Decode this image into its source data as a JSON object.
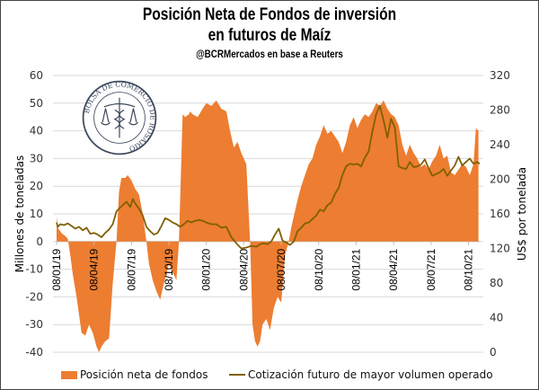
{
  "header": {
    "title_line1": "Posición Neta de Fondos de inversión",
    "title_line2": "en futuros de Maíz",
    "subtitle": "@BCRMercados  en base a Reuters"
  },
  "logo": {
    "text": "BOLSA DE COMERCIO DE ROSARIO",
    "icon": "caduceus-scales-seal-icon"
  },
  "colors": {
    "area": "#ED7D31",
    "line": "#7F6000",
    "grid": "#D9D9D9"
  },
  "chart_data": {
    "type": "area",
    "title": "Posición Neta de Fondos de inversión en futuros de Maíz",
    "subtitle": "@BCRMercados  en base a Reuters",
    "x_unit": "months since 2019-01",
    "x_tick_labels": [
      "08/01/19",
      "08/04/19",
      "08/07/19",
      "08/10/19",
      "08/01/20",
      "08/04/20",
      "08/07/20",
      "08/10/20",
      "08/01/21",
      "08/04/21",
      "08/07/21",
      "08/10/21"
    ],
    "x_tick_positions": [
      0,
      3,
      6,
      9,
      12,
      15,
      18,
      21,
      24,
      27,
      30,
      33
    ],
    "xlim": [
      0,
      33.9
    ],
    "y_left": {
      "label": "Millones de toneladas",
      "lim": [
        -40,
        60
      ],
      "ticks": [
        60,
        50,
        40,
        30,
        20,
        10,
        0,
        -10,
        -20,
        -30,
        -40
      ]
    },
    "y_right": {
      "label": "US$ por tonelada",
      "lim": [
        0,
        320
      ],
      "ticks": [
        320,
        280,
        240,
        200,
        160,
        120,
        80,
        40,
        0
      ]
    },
    "grid": true,
    "legend_position": "bottom",
    "series": [
      {
        "name": "Posición neta de fondos",
        "type": "area",
        "axis": "left",
        "x": [
          0,
          0.1,
          0.4,
          0.7,
          0.9,
          1.1,
          1.3,
          1.6,
          2.0,
          2.3,
          2.6,
          2.9,
          3.2,
          3.4,
          3.6,
          3.9,
          4.2,
          4.5,
          4.8,
          5.0,
          5.2,
          5.5,
          5.7,
          6.0,
          6.3,
          6.6,
          6.9,
          7.2,
          7.4,
          7.7,
          8.0,
          8.3,
          8.6,
          8.8,
          9.0,
          9.2,
          9.4,
          9.6,
          9.8,
          10.1,
          10.3,
          10.6,
          10.7,
          10.9,
          11.3,
          11.7,
          12.0,
          12.4,
          12.8,
          13.2,
          13.6,
          13.9,
          14.2,
          14.5,
          14.8,
          15.0,
          15.2,
          15.5,
          15.7,
          15.9,
          16.1,
          16.3,
          16.5,
          16.8,
          17.1,
          17.4,
          17.7,
          18.0,
          18.3,
          18.6,
          18.8,
          19.0,
          19.3,
          19.6,
          19.9,
          20.2,
          20.5,
          20.8,
          21.1,
          21.4,
          21.7,
          22.0,
          22.3,
          22.6,
          22.9,
          23.2,
          23.5,
          23.8,
          24.1,
          24.4,
          24.7,
          25.0,
          25.3,
          25.6,
          25.9,
          26.2,
          26.5,
          26.8,
          27.1,
          27.4,
          27.7,
          28.0,
          28.3,
          28.6,
          28.9,
          29.2,
          29.5,
          29.8,
          30.1,
          30.4,
          30.7,
          31.0,
          31.3,
          31.6,
          31.9,
          32.2,
          32.5,
          32.8,
          33.1,
          33.4,
          33.6,
          33.8
        ],
        "values": [
          9,
          5,
          3,
          2,
          1,
          -5,
          -12,
          -20,
          -33,
          -34,
          -30,
          -33,
          -38,
          -40,
          -38,
          -36,
          -35,
          -15,
          0,
          18,
          23,
          23,
          24,
          22,
          19,
          17,
          10,
          0,
          -8,
          -14,
          -18,
          -21,
          -15,
          -12,
          -8,
          -10,
          -12,
          -14,
          0,
          46,
          45,
          46,
          47,
          46,
          45,
          48,
          50,
          49,
          51,
          48,
          47,
          40,
          34,
          36,
          32,
          30,
          28,
          0,
          -30,
          -36,
          -38,
          -36,
          -30,
          -28,
          -32,
          -24,
          -20,
          -22,
          -5,
          0,
          5,
          9,
          15,
          20,
          24,
          28,
          30,
          35,
          38,
          42,
          39,
          40,
          38,
          36,
          32,
          36,
          42,
          45,
          41,
          44,
          46,
          45,
          47,
          50,
          49,
          51,
          48,
          46,
          45,
          42,
          35,
          31,
          35,
          32,
          30,
          27,
          28,
          26,
          29,
          31,
          35,
          30,
          31,
          25,
          24,
          26,
          28,
          27,
          24,
          28,
          41,
          40
        ],
        "color": "#ED7D31"
      },
      {
        "name": "Cotización futuro de mayor volumen operado",
        "type": "line",
        "axis": "right",
        "x": [
          0,
          0.1,
          0.3,
          0.6,
          0.9,
          1.2,
          1.5,
          1.8,
          2.1,
          2.4,
          2.7,
          3.0,
          3.3,
          3.6,
          3.9,
          4.2,
          4.5,
          4.8,
          5.0,
          5.3,
          5.6,
          5.9,
          6.1,
          6.3,
          6.6,
          6.9,
          7.2,
          7.5,
          7.8,
          8.1,
          8.4,
          8.7,
          9.0,
          9.3,
          9.6,
          9.9,
          10.2,
          10.5,
          10.8,
          11.1,
          11.4,
          11.7,
          12.0,
          12.4,
          12.8,
          13.2,
          13.6,
          14.0,
          14.4,
          14.8,
          15.2,
          15.6,
          16.0,
          16.3,
          16.6,
          16.9,
          17.2,
          17.5,
          17.8,
          18.1,
          18.4,
          18.7,
          19.0,
          19.3,
          19.6,
          19.9,
          20.2,
          20.5,
          20.8,
          21.1,
          21.4,
          21.7,
          22.0,
          22.3,
          22.6,
          22.9,
          23.2,
          23.5,
          23.8,
          24.1,
          24.4,
          24.7,
          25.0,
          25.3,
          25.6,
          25.9,
          26.2,
          26.5,
          26.8,
          27.1,
          27.4,
          27.7,
          28.0,
          28.3,
          28.6,
          28.9,
          29.2,
          29.5,
          29.8,
          30.1,
          30.4,
          30.7,
          31.0,
          31.3,
          31.6,
          31.9,
          32.2,
          32.5,
          32.8,
          33.1,
          33.4,
          33.7,
          33.9
        ],
        "values": [
          150,
          145,
          148,
          147,
          149,
          146,
          143,
          145,
          141,
          144,
          137,
          138,
          136,
          133,
          138,
          142,
          148,
          163,
          166,
          170,
          174,
          168,
          177,
          172,
          166,
          158,
          145,
          140,
          136,
          138,
          146,
          155,
          153,
          150,
          148,
          145,
          148,
          152,
          150,
          152,
          153,
          152,
          150,
          148,
          148,
          144,
          145,
          133,
          126,
          120,
          121,
          123,
          122,
          125,
          126,
          125,
          128,
          136,
          143,
          129,
          127,
          124,
          128,
          140,
          144,
          149,
          150,
          154,
          158,
          165,
          163,
          170,
          173,
          183,
          190,
          205,
          215,
          218,
          217,
          218,
          215,
          225,
          232,
          255,
          275,
          285,
          268,
          248,
          270,
          260,
          215,
          213,
          212,
          220,
          214,
          215,
          217,
          223,
          213,
          204,
          206,
          208,
          212,
          204,
          210,
          216,
          226,
          216,
          220,
          224,
          218,
          220,
          218
        ],
        "color": "#7F6000"
      }
    ]
  },
  "legend": {
    "items": [
      {
        "label": "Posición neta de fondos",
        "symbol": "area-swatch"
      },
      {
        "label": "Cotización futuro de mayor volumen operado",
        "symbol": "line-swatch"
      }
    ]
  }
}
